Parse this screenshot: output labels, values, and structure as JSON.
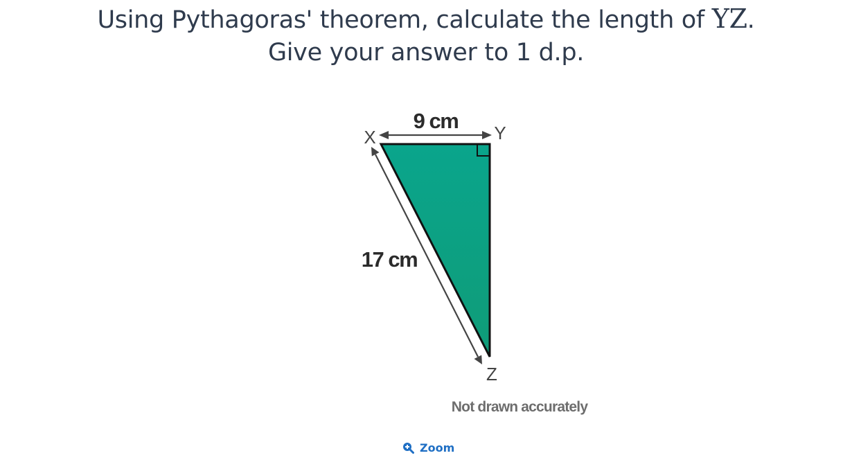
{
  "question": {
    "line1_prefix": "Using Pythagoras' theorem, calculate the length of",
    "line1_math": "YZ",
    "line1_suffix": ".",
    "line2": "Give your answer to 1 d.p."
  },
  "diagram": {
    "vertices": {
      "x": "X",
      "y": "Y",
      "z": "Z"
    },
    "side_xy": "9 cm",
    "side_xz": "17 cm",
    "note": "Not drawn accurately",
    "colors": {
      "fill": "#0aa38a",
      "outline": "#111111",
      "arrow": "#444444",
      "label": "#2b2b2b",
      "note": "#6d6d6d"
    }
  },
  "zoom": {
    "label": "Zoom",
    "icon": "zoom-in-icon",
    "color": "#1f6fc4"
  }
}
